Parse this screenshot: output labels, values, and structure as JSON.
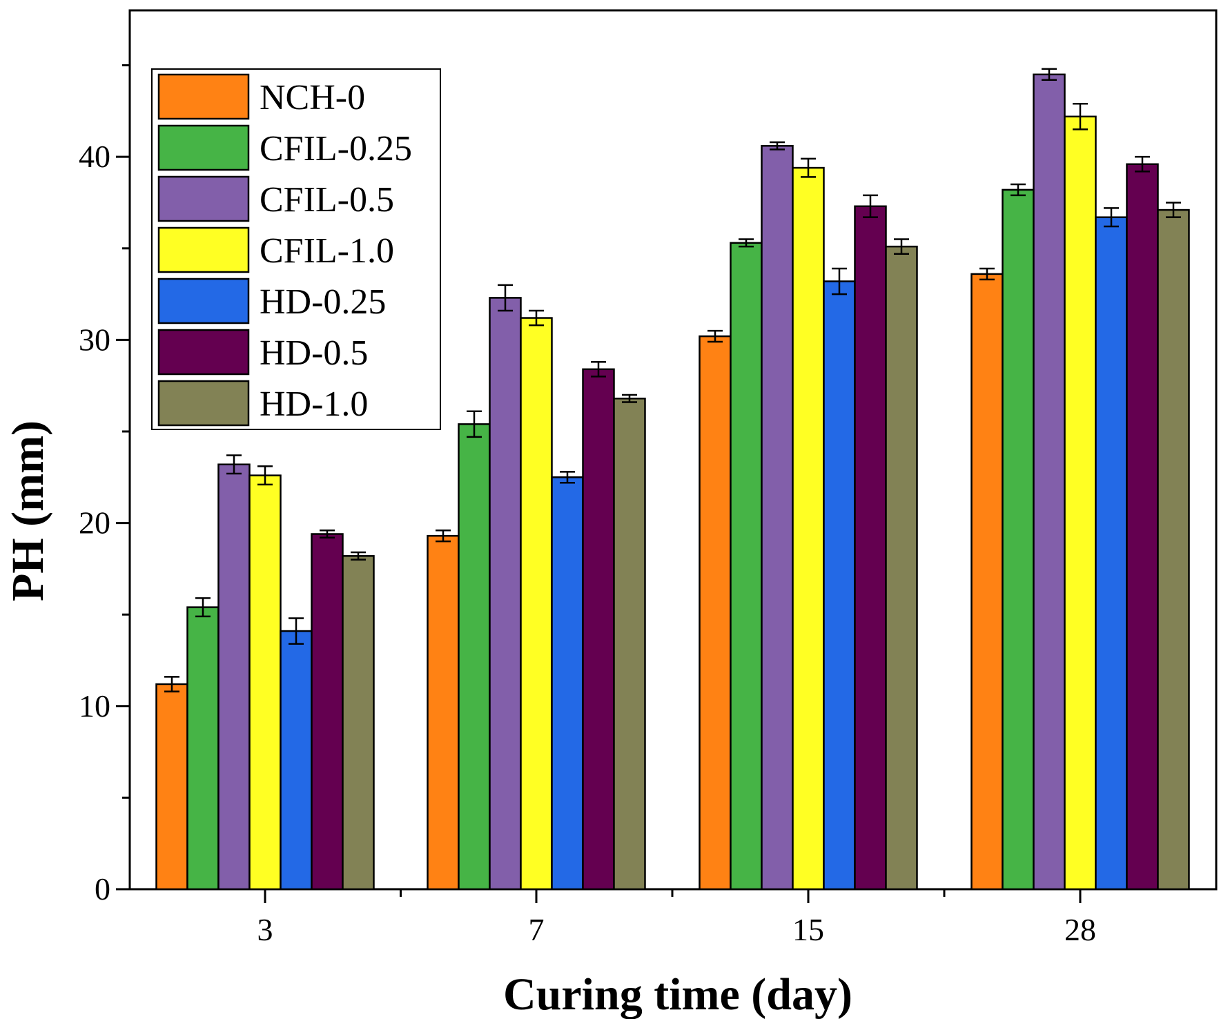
{
  "chart_data": {
    "type": "bar",
    "title": "",
    "xlabel": "Curing time (day)",
    "ylabel": "PH (mm)",
    "ylim": [
      0,
      48
    ],
    "yticks": [
      0,
      10,
      20,
      30,
      40
    ],
    "categories": [
      "3",
      "7",
      "15",
      "28"
    ],
    "legend_position": "top-left",
    "series": [
      {
        "name": "NCH-0",
        "color": "#FF8214",
        "values": [
          11.2,
          19.3,
          30.2,
          33.6
        ],
        "errors": [
          0.4,
          0.3,
          0.3,
          0.3
        ]
      },
      {
        "name": "CFIL-0.25",
        "color": "#46B446",
        "values": [
          15.4,
          25.4,
          35.3,
          38.2
        ],
        "errors": [
          0.5,
          0.7,
          0.2,
          0.3
        ]
      },
      {
        "name": "CFIL-0.5",
        "color": "#825FAA",
        "values": [
          23.2,
          32.3,
          40.6,
          44.5
        ],
        "errors": [
          0.5,
          0.7,
          0.2,
          0.3
        ]
      },
      {
        "name": "CFIL-1.0",
        "color": "#FFFF23",
        "values": [
          22.6,
          31.2,
          39.4,
          42.2
        ],
        "errors": [
          0.5,
          0.4,
          0.5,
          0.7
        ]
      },
      {
        "name": "HD-0.25",
        "color": "#2369E6",
        "values": [
          14.1,
          22.5,
          33.2,
          36.7
        ],
        "errors": [
          0.7,
          0.3,
          0.7,
          0.5
        ]
      },
      {
        "name": "HD-0.5",
        "color": "#640050",
        "values": [
          19.4,
          28.4,
          37.3,
          39.6
        ],
        "errors": [
          0.2,
          0.4,
          0.6,
          0.4
        ]
      },
      {
        "name": "HD-1.0",
        "color": "#828255",
        "values": [
          18.2,
          26.8,
          35.1,
          37.1
        ],
        "errors": [
          0.2,
          0.2,
          0.4,
          0.4
        ]
      }
    ]
  }
}
